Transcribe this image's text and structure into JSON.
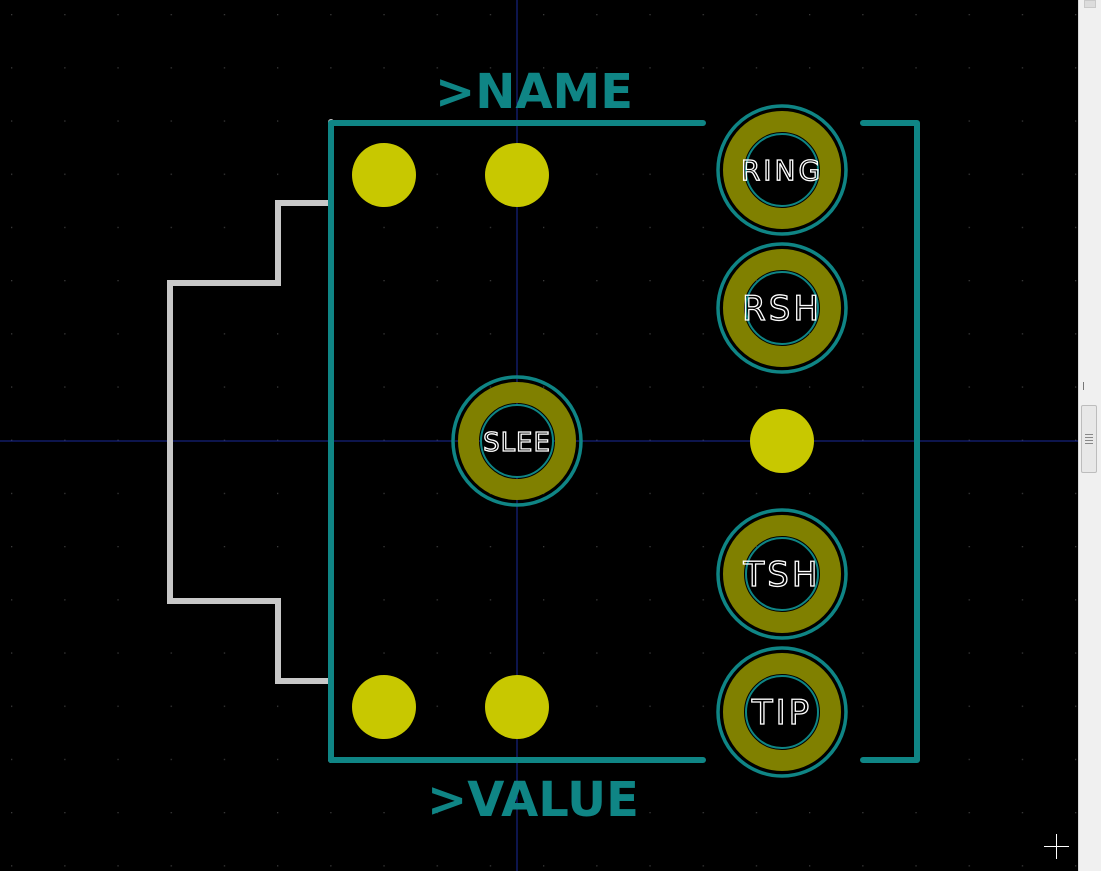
{
  "board": {
    "reference_text": ">NAME",
    "value_text": ">VALUE",
    "colors": {
      "background": "#000000",
      "grid_dot": "#3a3a3a",
      "silkscreen": "#0f8585",
      "board_outline": "#c8c8c8",
      "pad_copper": "#808000",
      "npth_hole": "#c8c800",
      "pad_label": "#ffffff",
      "crosshair": "#1a2a9a"
    }
  },
  "pads": [
    {
      "label": "RING"
    },
    {
      "label": "RSH"
    },
    {
      "label": "SLEE"
    },
    {
      "label": "TSH"
    },
    {
      "label": "TIP"
    }
  ],
  "mounting_holes": [
    {
      "type": "npth"
    },
    {
      "type": "npth"
    },
    {
      "type": "npth"
    },
    {
      "type": "npth"
    },
    {
      "type": "npth"
    }
  ],
  "ui": {
    "cursor_icon": "crosshair-cursor-icon",
    "scrollbar": "vertical-scrollbar"
  }
}
